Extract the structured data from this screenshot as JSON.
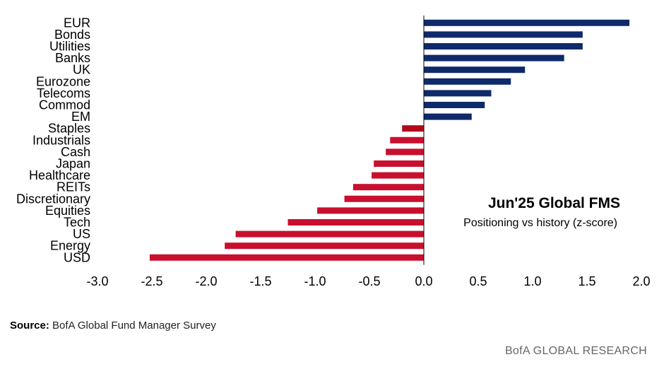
{
  "chart_data": {
    "type": "bar",
    "orientation": "horizontal",
    "categories": [
      "EUR",
      "Bonds",
      "Utilities",
      "Banks",
      "UK",
      "Eurozone",
      "Telecoms",
      "Commod",
      "EM",
      "Staples",
      "Industrials",
      "Cash",
      "Japan",
      "Healthcare",
      "REITs",
      "Discretionary",
      "Equities",
      "Tech",
      "US",
      "Energy",
      "USD"
    ],
    "values": [
      1.89,
      1.46,
      1.46,
      1.29,
      0.93,
      0.8,
      0.62,
      0.56,
      0.44,
      -0.2,
      -0.31,
      -0.35,
      -0.46,
      -0.48,
      -0.65,
      -0.73,
      -0.98,
      -1.25,
      -1.73,
      -1.83,
      -2.52
    ],
    "xlim": [
      -3.0,
      2.0
    ],
    "xticks": [
      "-3.0",
      "-2.5",
      "-2.0",
      "-1.5",
      "-1.0",
      "-0.5",
      "0.0",
      "0.5",
      "1.0",
      "1.5",
      "2.0"
    ],
    "xtick_values": [
      -3.0,
      -2.5,
      -2.0,
      -1.5,
      -1.0,
      -0.5,
      0.0,
      0.5,
      1.0,
      1.5,
      2.0
    ],
    "colors": {
      "positive": "#0f2a6b",
      "negative": "#c8102e",
      "staples": "#b20a1c"
    },
    "annotation_title": "Jun'25 Global FMS",
    "annotation_subtitle": "Positioning vs history (z-score)",
    "grid": false
  },
  "footer": {
    "source_label": "Source:",
    "source_text": "BofA Global Fund Manager Survey",
    "brand": "BofA GLOBAL RESEARCH"
  }
}
